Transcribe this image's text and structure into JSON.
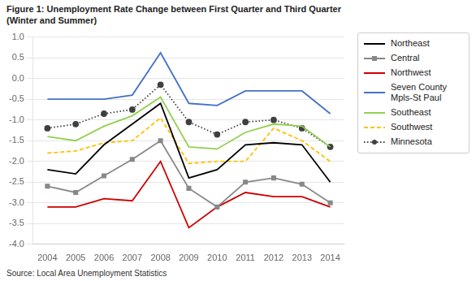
{
  "chart_data": {
    "type": "line",
    "title": "Figure 1: Unemployment Rate Change between First Quarter and Third Quarter",
    "subtitle": "(Winter and Summer)",
    "annotations": [
      "Source: Local Area Unemployment Statistics"
    ],
    "x": [
      2004,
      2005,
      2006,
      2007,
      2008,
      2009,
      2010,
      2011,
      2012,
      2013,
      2014
    ],
    "xlim": [
      2003.5,
      2014.5
    ],
    "xticks": [
      2004,
      2005,
      2006,
      2007,
      2008,
      2009,
      2010,
      2011,
      2012,
      2013,
      2014
    ],
    "ylim": [
      -4.0,
      1.0
    ],
    "yticks": [
      {
        "value": -4.0,
        "label": "-4.0"
      },
      -3.5,
      {
        "value": -3.0,
        "label": "-3.0"
      },
      -2.5,
      {
        "value": -2.0,
        "label": "-2.0"
      },
      -1.5,
      {
        "value": -1.0,
        "label": "-1.0"
      },
      -0.5,
      {
        "value": 0.0,
        "label": "0.0"
      },
      0.5,
      {
        "value": 1.0,
        "label": "1.0"
      }
    ],
    "grid": "y",
    "legend": "right",
    "series": [
      {
        "name": "Northeast",
        "color": "#000000",
        "line_style": "solid",
        "marker": "none",
        "values": [
          -2.2,
          -2.3,
          -1.6,
          -1.1,
          -0.6,
          -2.4,
          -2.2,
          -1.6,
          -1.55,
          -1.6,
          -2.5
        ]
      },
      {
        "name": "Central",
        "color": "#888888",
        "line_style": "solid",
        "marker": "square",
        "values": [
          -2.6,
          -2.75,
          -2.35,
          -1.95,
          -1.5,
          -2.65,
          -3.1,
          -2.5,
          -2.4,
          -2.55,
          -3.0
        ]
      },
      {
        "name": "Northwest",
        "color": "#cc0000",
        "line_style": "solid",
        "marker": "none",
        "values": [
          -3.1,
          -3.1,
          -2.9,
          -2.95,
          -2.0,
          -3.6,
          -3.1,
          -2.75,
          -2.85,
          -2.85,
          -3.1
        ]
      },
      {
        "name": "Seven County\nMpls-St Paul",
        "color": "#4472c4",
        "line_style": "solid",
        "marker": "none",
        "values": [
          -0.5,
          -0.5,
          -0.5,
          -0.4,
          0.62,
          -0.6,
          -0.65,
          -0.3,
          -0.3,
          -0.3,
          -0.85
        ]
      },
      {
        "name": "Southeast",
        "color": "#92d050",
        "line_style": "solid",
        "marker": "none",
        "values": [
          -1.4,
          -1.5,
          -1.15,
          -0.9,
          -0.45,
          -1.65,
          -1.7,
          -1.3,
          -1.1,
          -1.15,
          -1.65
        ]
      },
      {
        "name": "Southwest",
        "color": "#ffc000",
        "line_style": "dashed",
        "marker": "none",
        "values": [
          -1.8,
          -1.75,
          -1.55,
          -1.5,
          -0.95,
          -2.05,
          -2.0,
          -2.0,
          -1.2,
          -1.5,
          -2.0
        ]
      },
      {
        "name": "Minnesota",
        "color": "#404040",
        "line_style": "dotted",
        "marker": "circle",
        "values": [
          -1.2,
          -1.1,
          -0.85,
          -0.75,
          -0.15,
          -1.05,
          -1.35,
          -1.05,
          -1.0,
          -1.2,
          -1.65
        ]
      }
    ]
  }
}
